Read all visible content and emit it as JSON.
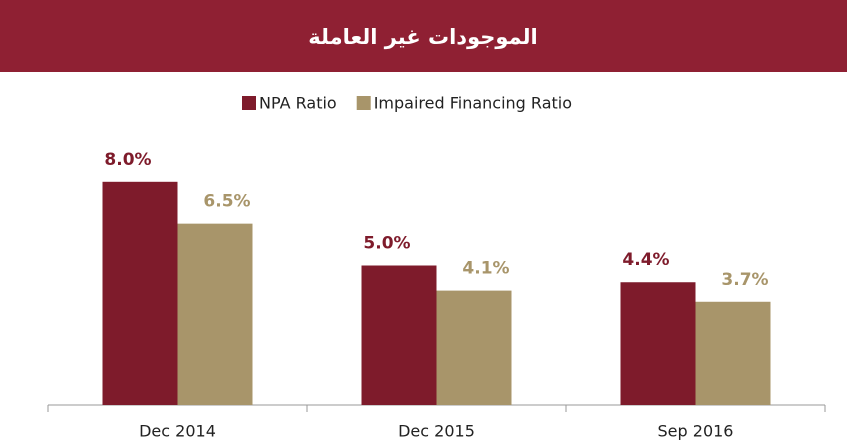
{
  "chart_data": {
    "type": "bar",
    "title": "الموجودات غير العاملة",
    "categories": [
      "Dec 2014",
      "Dec 2015",
      "Sep 2016"
    ],
    "series": [
      {
        "name": "NPA Ratio",
        "color": "#7e1b2b",
        "values": [
          8.0,
          5.0,
          4.4
        ],
        "value_labels": [
          "8.0%",
          "5.0%",
          "4.4%"
        ]
      },
      {
        "name": "Impaired Financing Ratio",
        "color": "#a8956a",
        "values": [
          6.5,
          4.1,
          3.7
        ],
        "value_labels": [
          "6.5%",
          "4.1%",
          "3.7%"
        ]
      }
    ]
  }
}
